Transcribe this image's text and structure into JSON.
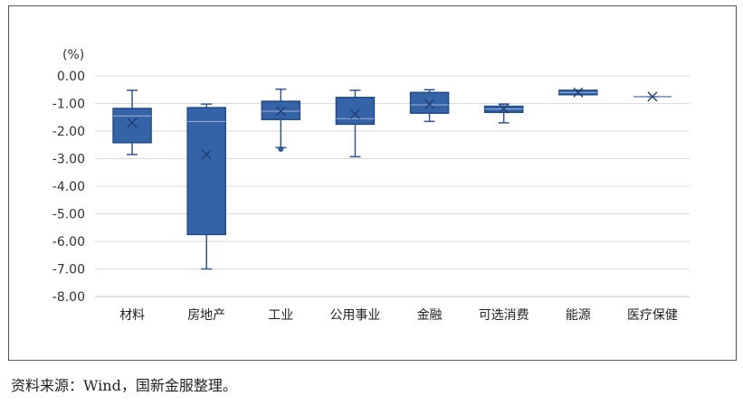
{
  "chart_data": {
    "type": "box",
    "unit_label": "(%)",
    "ylim": [
      -8.0,
      0.0
    ],
    "yticks": [
      "0.00",
      "-1.00",
      "-2.00",
      "-3.00",
      "-4.00",
      "-5.00",
      "-6.00",
      "-7.00",
      "-8.00"
    ],
    "grid": true,
    "categories": [
      "材料",
      "房地产",
      "工业",
      "公用事业",
      "金融",
      "可选消费",
      "能源",
      "医疗保健"
    ],
    "boxes": [
      {
        "min": -2.85,
        "q1": -2.42,
        "median": -1.45,
        "q3": -1.18,
        "max": -0.52,
        "mean": -1.7,
        "outliers": []
      },
      {
        "min": -7.0,
        "q1": -5.75,
        "median": -1.65,
        "q3": -1.15,
        "max": -1.02,
        "mean": -2.85,
        "outliers": []
      },
      {
        "min": -2.6,
        "q1": -1.58,
        "median": -1.28,
        "q3": -0.92,
        "max": -0.48,
        "mean": -1.28,
        "outliers": [
          -2.65
        ]
      },
      {
        "min": -2.93,
        "q1": -1.75,
        "median": -1.55,
        "q3": -0.78,
        "max": -0.52,
        "mean": -1.38,
        "outliers": []
      },
      {
        "min": -1.65,
        "q1": -1.35,
        "median": -1.05,
        "q3": -0.6,
        "max": -0.5,
        "mean": -1.02,
        "outliers": []
      },
      {
        "min": -1.7,
        "q1": -1.32,
        "median": -1.2,
        "q3": -1.1,
        "max": -1.02,
        "mean": -1.18,
        "outliers": []
      },
      {
        "min": -0.68,
        "q1": -0.68,
        "median": -0.6,
        "q3": -0.52,
        "max": -0.52,
        "mean": -0.6,
        "outliers": []
      },
      {
        "min": -0.75,
        "q1": -0.75,
        "median": -0.75,
        "q3": -0.75,
        "max": -0.75,
        "mean": -0.75,
        "outliers": []
      }
    ],
    "colors": {
      "box_fill": "#3463a8",
      "box_stroke": "#1f4a8a",
      "whisker": "#2f5597",
      "grid": "#d9d9d9",
      "axis": "#bfbfbf"
    }
  },
  "source_note": "资料来源：Wind，国新金服整理。"
}
